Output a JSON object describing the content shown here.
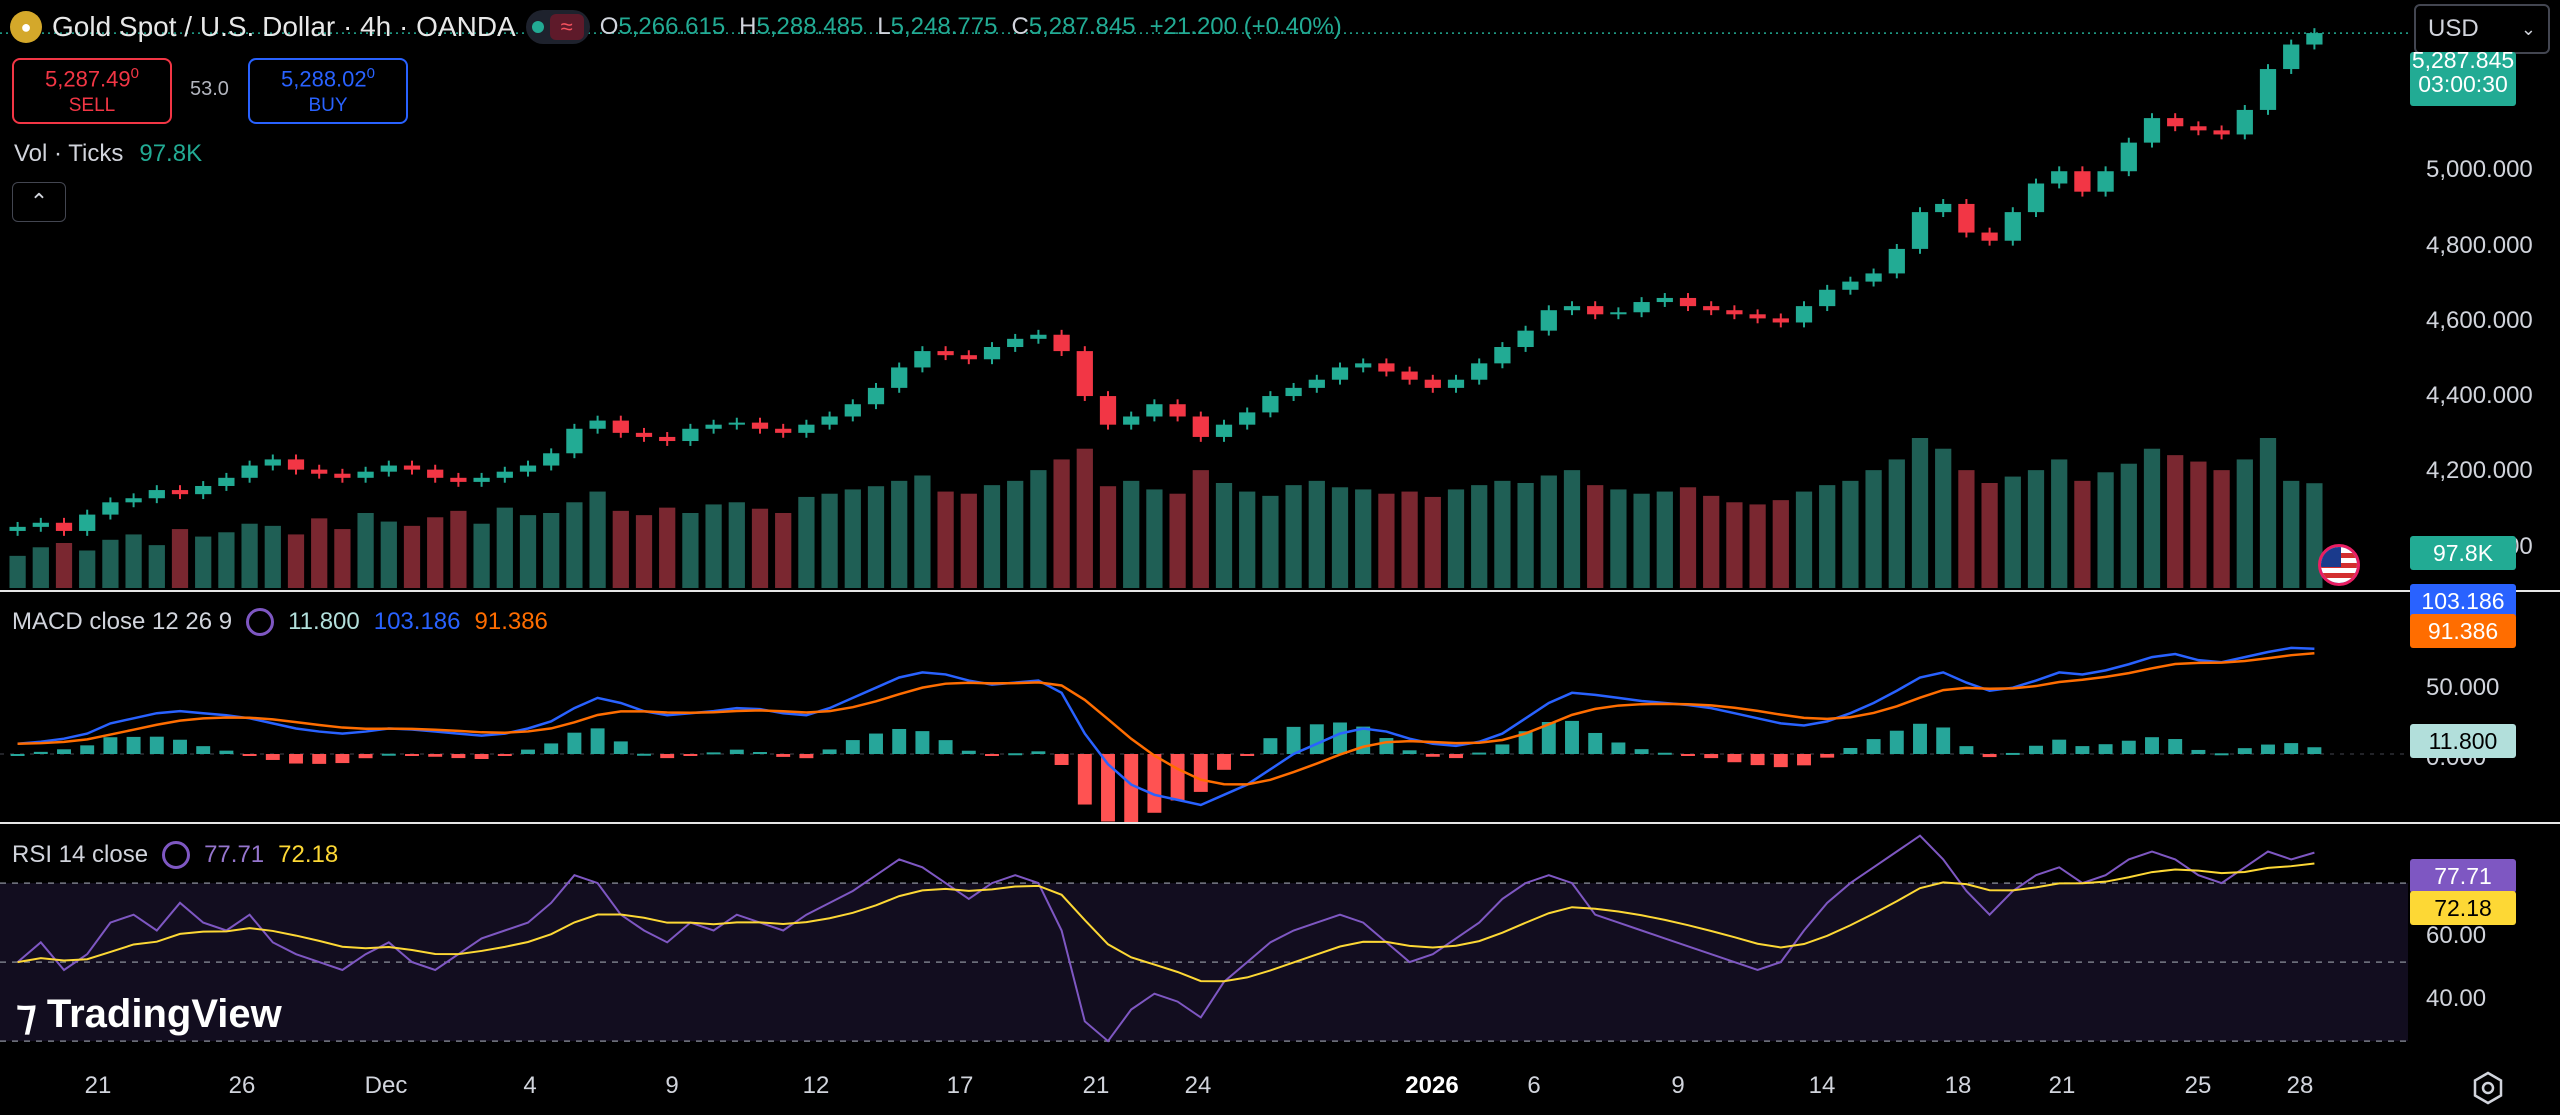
{
  "header": {
    "symbol": "Gold Spot / U.S. Dollar · 4h · OANDA",
    "ohlc": [
      {
        "k": "O",
        "v": "5,266.615"
      },
      {
        "k": "H",
        "v": "5,288.485"
      },
      {
        "k": "L",
        "v": "5,248.775"
      },
      {
        "k": "C",
        "v": "5,287.845"
      }
    ],
    "change": "+21.200 (+0.40%)",
    "currency": "USD"
  },
  "trade": {
    "sell_price": "5,287.49",
    "sell_sup": "0",
    "sell_label": "SELL",
    "spread": "53.0",
    "buy_price": "5,288.02",
    "buy_sup": "0",
    "buy_label": "BUY"
  },
  "volume": {
    "label": "Vol · Ticks",
    "value": "97.8K",
    "tag": "97.8K"
  },
  "price_axis": {
    "labels": [
      "5,000.000",
      "4,800.000",
      "4,600.000",
      "4,400.000",
      "4,200.000",
      "4,000.000"
    ],
    "last_price": "5,287.845",
    "countdown": "03:00:30"
  },
  "macd": {
    "label": "MACD close 12 26 9",
    "hist": "11.800",
    "macd": "103.186",
    "signal": "91.386",
    "axis": [
      "50.000",
      "0.000"
    ]
  },
  "rsi": {
    "label": "RSI 14 close",
    "rsi": "77.71",
    "ma": "72.18",
    "axis": [
      "60.00",
      "40.00"
    ]
  },
  "time_axis": [
    "21",
    "26",
    "Dec",
    "4",
    "9",
    "12",
    "17",
    "21",
    "24",
    "",
    "2026",
    "6",
    "9",
    "14",
    "18",
    "21",
    "25",
    "28"
  ],
  "watermark": "TradingView",
  "colors": {
    "up": "#22ab94",
    "down": "#f23645",
    "macd": "#2962ff",
    "signal": "#ff6d00",
    "rsi": "#7e57c2",
    "rsi_ma": "#fdd835"
  },
  "chart_data": {
    "type": "candlestick",
    "price_range": [
      3950,
      5320
    ],
    "closes": [
      4080,
      4090,
      4070,
      4110,
      4140,
      4150,
      4170,
      4160,
      4180,
      4200,
      4230,
      4245,
      4220,
      4210,
      4200,
      4215,
      4230,
      4220,
      4200,
      4190,
      4200,
      4215,
      4230,
      4260,
      4320,
      4340,
      4310,
      4300,
      4290,
      4320,
      4330,
      4335,
      4320,
      4310,
      4330,
      4350,
      4380,
      4420,
      4470,
      4510,
      4500,
      4490,
      4520,
      4540,
      4550,
      4510,
      4400,
      4330,
      4350,
      4380,
      4350,
      4300,
      4330,
      4360,
      4400,
      4420,
      4440,
      4470,
      4480,
      4460,
      4440,
      4420,
      4440,
      4480,
      4520,
      4560,
      4610,
      4620,
      4600,
      4605,
      4630,
      4640,
      4620,
      4610,
      4600,
      4590,
      4580,
      4620,
      4660,
      4680,
      4700,
      4760,
      4850,
      4870,
      4800,
      4780,
      4850,
      4920,
      4950,
      4900,
      4950,
      5020,
      5080,
      5060,
      5050,
      5040,
      5100,
      5200,
      5260,
      5288
    ],
    "volumes": [
      30,
      38,
      42,
      35,
      45,
      50,
      40,
      55,
      48,
      52,
      60,
      58,
      50,
      65,
      55,
      70,
      62,
      58,
      66,
      72,
      60,
      75,
      68,
      70,
      80,
      90,
      72,
      68,
      75,
      70,
      78,
      80,
      74,
      70,
      85,
      88,
      92,
      95,
      100,
      105,
      90,
      88,
      96,
      100,
      110,
      120,
      130,
      95,
      100,
      92,
      88,
      110,
      98,
      90,
      86,
      96,
      100,
      94,
      92,
      88,
      90,
      85,
      92,
      96,
      100,
      98,
      105,
      110,
      96,
      92,
      88,
      90,
      94,
      86,
      80,
      78,
      82,
      90,
      96,
      100,
      110,
      120,
      140,
      130,
      110,
      98,
      104,
      110,
      120,
      100,
      108,
      116,
      130,
      124,
      118,
      110,
      120,
      140,
      100,
      97.8
    ],
    "macd": [
      10,
      12,
      15,
      20,
      30,
      35,
      40,
      42,
      40,
      38,
      35,
      30,
      25,
      22,
      20,
      22,
      25,
      24,
      22,
      20,
      18,
      20,
      25,
      32,
      45,
      55,
      50,
      42,
      38,
      40,
      42,
      45,
      44,
      40,
      38,
      45,
      55,
      65,
      75,
      80,
      78,
      72,
      68,
      70,
      72,
      60,
      20,
      -10,
      -30,
      -40,
      -45,
      -50,
      -40,
      -30,
      -15,
      0,
      10,
      20,
      25,
      22,
      15,
      10,
      8,
      12,
      20,
      35,
      50,
      60,
      58,
      55,
      52,
      50,
      48,
      45,
      40,
      35,
      30,
      28,
      32,
      40,
      50,
      62,
      75,
      80,
      70,
      62,
      65,
      72,
      80,
      78,
      82,
      88,
      95,
      98,
      92,
      90,
      95,
      100,
      104,
      103.186
    ],
    "rsi": [
      50,
      55,
      48,
      52,
      60,
      62,
      58,
      65,
      60,
      58,
      62,
      55,
      52,
      50,
      48,
      52,
      55,
      50,
      48,
      52,
      56,
      58,
      60,
      65,
      72,
      70,
      62,
      58,
      55,
      60,
      58,
      62,
      60,
      58,
      62,
      65,
      68,
      72,
      76,
      74,
      70,
      66,
      70,
      72,
      70,
      58,
      35,
      30,
      38,
      42,
      40,
      36,
      45,
      50,
      55,
      58,
      60,
      62,
      60,
      55,
      50,
      52,
      56,
      60,
      66,
      70,
      72,
      70,
      62,
      60,
      58,
      56,
      54,
      52,
      50,
      48,
      50,
      58,
      65,
      70,
      74,
      78,
      82,
      76,
      68,
      62,
      68,
      72,
      74,
      70,
      72,
      76,
      78,
      76,
      72,
      70,
      74,
      78,
      76,
      77.71
    ]
  }
}
